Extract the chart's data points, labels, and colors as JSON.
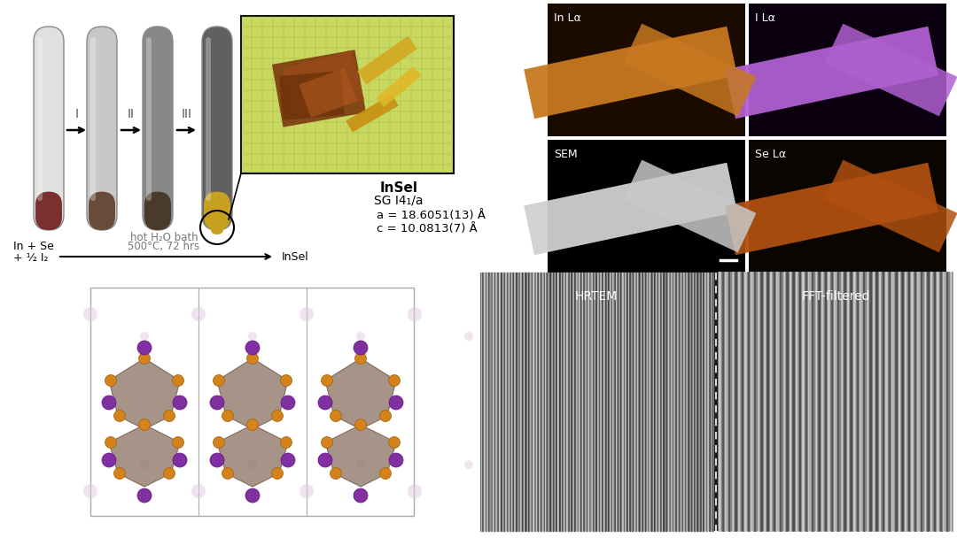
{
  "title": "",
  "background_color": "#ffffff",
  "panels": {
    "top_left_synthesis": {
      "text_reagents": "In + Se\n+ ½ I₂",
      "text_condition": "hot H₂O bath\n500°C, 72 hrs",
      "text_product": "InSel",
      "arrow_labels": [
        "I",
        "II",
        "III"
      ],
      "tube_colors": [
        "#e8e8e8",
        "#b0b0b0",
        "#686868",
        "#484848"
      ],
      "bulb_colors": [
        "#7a3030",
        "#6a4a3a",
        "#4a3a2a",
        "#c8a020"
      ]
    },
    "crystal_info": {
      "name": "InSel",
      "space_group": "SG I4₁/a",
      "a_param": "a = 18.6051(13) Å",
      "c_param": "c = 10.0813(7) Å"
    },
    "edx_labels": {
      "top_left": "In Lα",
      "top_right": "I Lα",
      "bottom_left": "SEM",
      "bottom_right": "Se Lα"
    },
    "edx_colors": {
      "top_left_bg": "#1a0a00",
      "top_left_fiber": "#c87820",
      "top_right_bg": "#0a0010",
      "top_right_fiber": "#b060d0",
      "bottom_left_bg": "#000000",
      "bottom_left_fiber": "#d0d0d0",
      "bottom_right_bg": "#0a0500",
      "bottom_right_fiber": "#b05010"
    },
    "hrtem_labels": {
      "left": "HRTEM",
      "right": "FFT-filtered"
    }
  }
}
